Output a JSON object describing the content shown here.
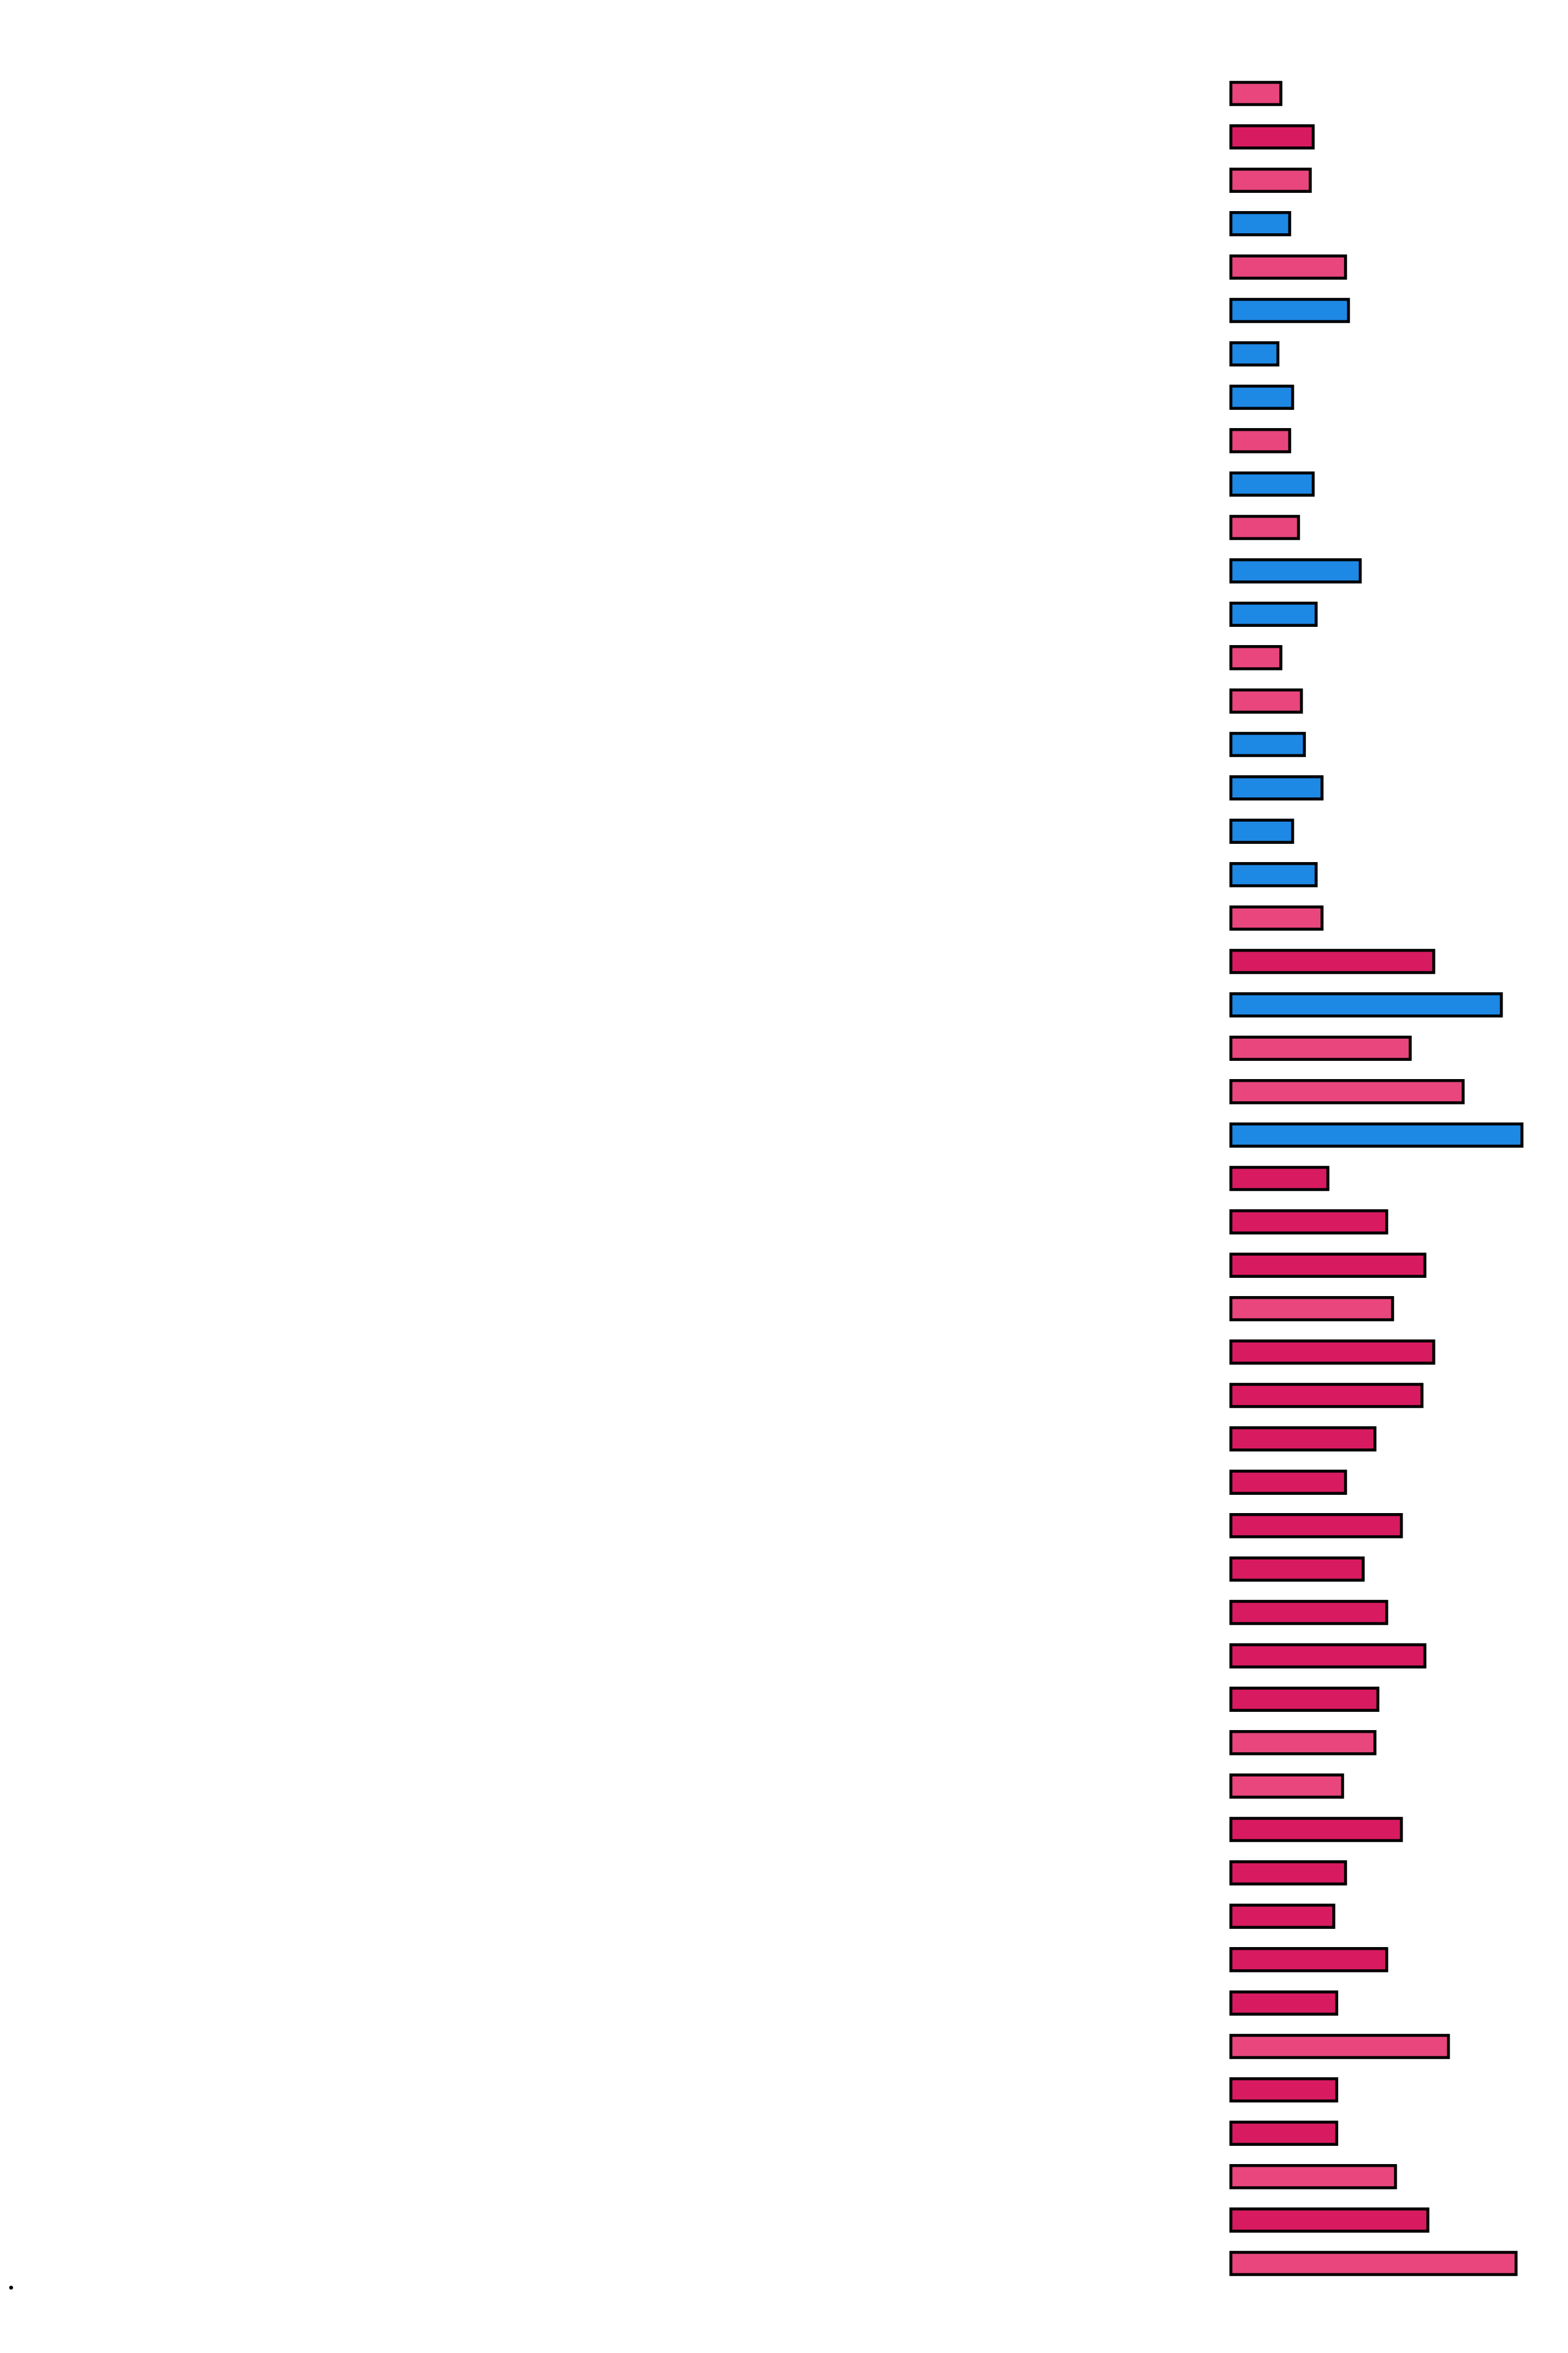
{
  "colors": {
    "pink": "#E8467C",
    "crimson": "#D81B60",
    "blue": "#1E88E5",
    "outline": "#000000",
    "background": "#FFFFFF"
  },
  "chart_data": {
    "type": "bar",
    "orientation": "horizontal",
    "title": "",
    "xlabel": "",
    "ylabel": "",
    "xlim": [
      0,
      100
    ],
    "grid": false,
    "legend": "none",
    "axes_visible": false,
    "values": [
      17,
      28,
      27,
      20,
      39,
      40,
      16,
      21,
      20,
      28,
      23,
      44,
      29,
      17,
      24,
      25,
      31,
      21,
      29,
      31,
      69,
      92,
      61,
      79,
      99,
      33,
      53,
      66,
      55,
      69,
      65,
      49,
      39,
      58,
      45,
      53,
      66,
      50,
      49,
      38,
      58,
      39,
      35,
      53,
      36,
      74,
      36,
      36,
      56,
      67,
      97
    ],
    "bar_colors": [
      "pink",
      "crimson",
      "pink",
      "blue",
      "pink",
      "blue",
      "blue",
      "blue",
      "pink",
      "blue",
      "pink",
      "blue",
      "blue",
      "pink",
      "pink",
      "blue",
      "blue",
      "blue",
      "blue",
      "pink",
      "crimson",
      "blue",
      "pink",
      "pink",
      "blue",
      "crimson",
      "crimson",
      "crimson",
      "pink",
      "crimson",
      "crimson",
      "crimson",
      "crimson",
      "crimson",
      "crimson",
      "crimson",
      "crimson",
      "crimson",
      "pink",
      "pink",
      "crimson",
      "crimson",
      "crimson",
      "crimson",
      "crimson",
      "pink",
      "crimson",
      "crimson",
      "pink",
      "crimson",
      "pink"
    ]
  }
}
